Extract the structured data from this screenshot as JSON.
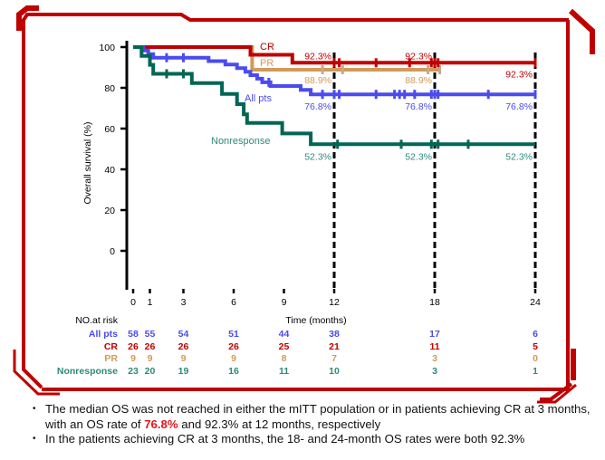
{
  "colors": {
    "frame": "#c00000",
    "all_pts": "#4b4bef",
    "cr": "#c00000",
    "pr": "#d19a5a",
    "nonresponse": "#006655",
    "nonresponse_label": "#2e8a7a",
    "axis": "#000000",
    "highlight": "#e8141b"
  },
  "chart_data": {
    "type": "line",
    "subtype": "kaplan-meier step",
    "title": "",
    "xlabel": "Time (months)",
    "ylabel": "Overall survival (%)",
    "xlim": [
      0,
      24
    ],
    "ylim": [
      0,
      100
    ],
    "x_ticks": [
      0,
      1,
      3,
      6,
      9,
      12,
      18,
      24
    ],
    "y_ticks": [
      0,
      20,
      40,
      60,
      80,
      100
    ],
    "reference_lines_x": [
      12,
      18,
      24
    ],
    "grid": false,
    "series": [
      {
        "name": "CR",
        "key": "cr",
        "steps": [
          [
            0,
            100
          ],
          [
            7,
            100
          ],
          [
            7,
            96.2
          ],
          [
            9.5,
            96.2
          ],
          [
            9.5,
            92.3
          ],
          [
            24,
            92.3
          ]
        ],
        "censor_times": [
          12,
          12.3,
          14.5,
          16.5,
          17.8,
          18,
          18.2,
          24
        ],
        "annotations": [
          {
            "text": "92.3%",
            "at_month": 12,
            "value": 92.3
          },
          {
            "text": "92.3%",
            "at_month": 18,
            "value": 92.3
          },
          {
            "text": "92.3%",
            "at_month": 24,
            "value": 92.3
          }
        ]
      },
      {
        "name": "PR",
        "key": "pr",
        "steps": [
          [
            0,
            100
          ],
          [
            7.1,
            100
          ],
          [
            7.1,
            88.9
          ],
          [
            18.3,
            88.9
          ]
        ],
        "censor_times": [
          11.3,
          12.5,
          17.6,
          18.3
        ],
        "annotations": [
          {
            "text": "88.9%",
            "at_month": 12,
            "value": 88.9
          },
          {
            "text": "88.9%",
            "at_month": 18,
            "value": 88.9
          }
        ]
      },
      {
        "name": "All pts",
        "key": "all_pts",
        "steps": [
          [
            0,
            100
          ],
          [
            0.6,
            100
          ],
          [
            0.6,
            98.3
          ],
          [
            0.9,
            98.3
          ],
          [
            0.9,
            96.6
          ],
          [
            1.2,
            96.6
          ],
          [
            1.2,
            94.8
          ],
          [
            4.5,
            94.8
          ],
          [
            4.5,
            93.1
          ],
          [
            5.5,
            93.1
          ],
          [
            5.5,
            91.4
          ],
          [
            6.2,
            91.4
          ],
          [
            6.2,
            89.7
          ],
          [
            6.7,
            89.7
          ],
          [
            6.7,
            87.9
          ],
          [
            7.0,
            87.9
          ],
          [
            7.0,
            86.2
          ],
          [
            7.4,
            86.2
          ],
          [
            7.4,
            84.5
          ],
          [
            7.7,
            84.5
          ],
          [
            7.7,
            82.7
          ],
          [
            8.2,
            82.7
          ],
          [
            8.2,
            80.9
          ],
          [
            10.0,
            80.9
          ],
          [
            10.0,
            79.0
          ],
          [
            10.6,
            79.0
          ],
          [
            10.6,
            76.8
          ],
          [
            24,
            76.8
          ]
        ],
        "censor_times": [
          2,
          3,
          8.1,
          11.3,
          12,
          12.3,
          14.5,
          15.6,
          15.9,
          16.2,
          16.8,
          17.8,
          18,
          18.2,
          21.2,
          24
        ],
        "annotations": [
          {
            "text": "76.8%",
            "at_month": 12,
            "value": 76.8
          },
          {
            "text": "76.8%",
            "at_month": 18,
            "value": 76.8
          },
          {
            "text": "76.8%",
            "at_month": 24,
            "value": 76.8
          }
        ]
      },
      {
        "name": "Nonresponse",
        "key": "nonresponse",
        "steps": [
          [
            0,
            100
          ],
          [
            0.5,
            100
          ],
          [
            0.5,
            95.7
          ],
          [
            1.0,
            95.7
          ],
          [
            1.0,
            91.3
          ],
          [
            1.2,
            91.3
          ],
          [
            1.2,
            86.9
          ],
          [
            3.5,
            86.9
          ],
          [
            3.5,
            82.3
          ],
          [
            5.3,
            82.3
          ],
          [
            5.3,
            77.0
          ],
          [
            6.2,
            77.0
          ],
          [
            6.2,
            72.0
          ],
          [
            6.6,
            72.0
          ],
          [
            6.6,
            67.0
          ],
          [
            6.8,
            67.0
          ],
          [
            6.8,
            62.8
          ],
          [
            8.9,
            62.8
          ],
          [
            8.9,
            57.6
          ],
          [
            10.6,
            57.6
          ],
          [
            10.6,
            52.3
          ],
          [
            24,
            52.3
          ]
        ],
        "censor_times": [
          2,
          3,
          12.2,
          16.0,
          17.8,
          18.2,
          20.0
        ],
        "annotations": [
          {
            "text": "52.3%",
            "at_month": 12,
            "value": 52.3
          },
          {
            "text": "52.3%",
            "at_month": 18,
            "value": 52.3
          },
          {
            "text": "52.3%",
            "at_month": 24,
            "value": 52.3
          }
        ]
      }
    ],
    "curve_labels": [
      {
        "text": "CR",
        "key": "cr"
      },
      {
        "text": "PR",
        "key": "pr"
      },
      {
        "text": "All pts",
        "key": "all_pts"
      },
      {
        "text": "Nonresponse",
        "key": "nonresponse"
      }
    ],
    "at_risk": {
      "title": "NO.at risk",
      "times": [
        0,
        1,
        3,
        6,
        9,
        12,
        18,
        24
      ],
      "rows": [
        {
          "label": "All pts",
          "key": "all_pts",
          "values": [
            58,
            55,
            54,
            51,
            44,
            38,
            17,
            6
          ]
        },
        {
          "label": "CR",
          "key": "cr",
          "values": [
            26,
            26,
            26,
            26,
            25,
            21,
            11,
            5
          ]
        },
        {
          "label": "PR",
          "key": "pr",
          "values": [
            9,
            9,
            9,
            9,
            8,
            7,
            3,
            0
          ]
        },
        {
          "label": "Nonresponse",
          "key": "nonresponse",
          "values": [
            23,
            20,
            19,
            16,
            11,
            10,
            3,
            1
          ]
        }
      ]
    }
  },
  "bullets": [
    {
      "before": "The median OS was not reached in either the mITT population or in patients achieving CR at 3 months, with an OS rate of ",
      "highlight": "76.8%",
      "after": " and 92.3% at 12 months, respectively"
    },
    {
      "before": "In the patients achieving CR at 3 months, the 18- and 24-month OS rates were both 92.3%",
      "highlight": "",
      "after": ""
    }
  ],
  "bullet_glyph": "•"
}
